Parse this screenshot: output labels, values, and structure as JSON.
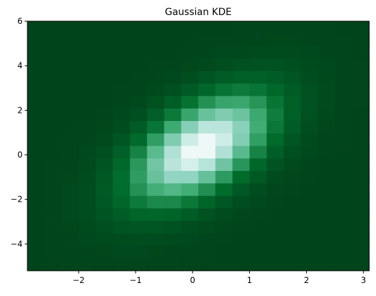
{
  "chart_data": {
    "type": "heatmap",
    "title": "Gaussian KDE",
    "xlabel": "",
    "ylabel": "",
    "xlim": [
      -2.9,
      3.1
    ],
    "ylim": [
      -5.2,
      6.0
    ],
    "grid": false,
    "legend": "none",
    "colormap": "BuGn_r",
    "nx": 20,
    "ny": 20,
    "density_model": {
      "mean": [
        0.15,
        0.3
      ],
      "std": [
        0.85,
        1.7
      ],
      "correlation": 0.55
    },
    "x_ticks": [
      {
        "value": -2,
        "label": "−2"
      },
      {
        "value": -1,
        "label": "−1"
      },
      {
        "value": 0,
        "label": "0"
      },
      {
        "value": 1,
        "label": "1"
      },
      {
        "value": 2,
        "label": "2"
      },
      {
        "value": 3,
        "label": "3"
      }
    ],
    "y_ticks": [
      {
        "value": -4,
        "label": "−4"
      },
      {
        "value": -2,
        "label": "−2"
      },
      {
        "value": 0,
        "label": "0"
      },
      {
        "value": 2,
        "label": "2"
      },
      {
        "value": 4,
        "label": "4"
      },
      {
        "value": 6,
        "label": "6"
      }
    ],
    "colors": {
      "low": "#00441b",
      "mid_low": "#006d2c",
      "mid": "#41ae76",
      "mid_high": "#99d8c9",
      "high": "#f7fcfd"
    }
  }
}
